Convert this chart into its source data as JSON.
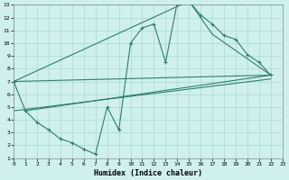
{
  "xlabel": "Humidex (Indice chaleur)",
  "bg_color": "#cff0ef",
  "grid_color": "#a8d8d2",
  "line_color": "#2e7d6e",
  "xlim": [
    0,
    23
  ],
  "ylim": [
    1,
    13
  ],
  "xticks": [
    0,
    1,
    2,
    3,
    4,
    5,
    6,
    7,
    8,
    9,
    10,
    11,
    12,
    13,
    14,
    15,
    16,
    17,
    18,
    19,
    20,
    21,
    22,
    23
  ],
  "yticks": [
    1,
    2,
    3,
    4,
    5,
    6,
    7,
    8,
    9,
    10,
    11,
    12,
    13
  ],
  "line_jagged": {
    "x": [
      0,
      1,
      2,
      3,
      4,
      5,
      6,
      7,
      8,
      9,
      10,
      11,
      12,
      13,
      14,
      15,
      16,
      17,
      18,
      19,
      20,
      21,
      22
    ],
    "y": [
      7.0,
      4.7,
      3.8,
      3.2,
      2.5,
      2.2,
      1.7,
      1.3,
      5.0,
      3.2,
      10.0,
      11.2,
      11.5,
      8.5,
      13.2,
      13.3,
      12.2,
      11.5,
      10.6,
      10.3,
      9.1,
      8.5,
      7.5
    ]
  },
  "line_polygon": {
    "x": [
      0,
      15,
      17,
      22,
      0
    ],
    "y": [
      7.0,
      13.3,
      10.7,
      7.5,
      7.0
    ]
  },
  "line_reg1": {
    "x": [
      1,
      22
    ],
    "y": [
      4.7,
      7.5
    ]
  },
  "line_reg2": {
    "x": [
      0,
      22
    ],
    "y": [
      4.7,
      7.2
    ]
  }
}
